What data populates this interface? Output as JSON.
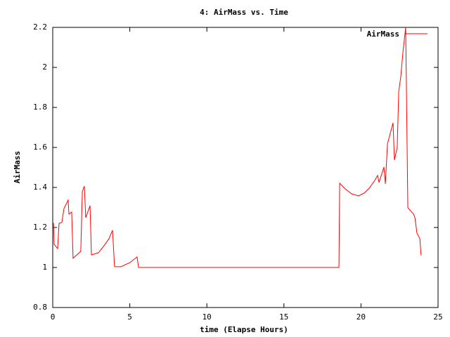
{
  "chart_data": {
    "type": "line",
    "title": "4: AirMass vs. Time",
    "x_label": "time (Elapse Hours)",
    "y_label": "AirMass",
    "x": [
      0,
      0.05,
      0.09,
      0.32,
      0.41,
      0.59,
      0.73,
      1.0,
      1.05,
      1.23,
      1.32,
      1.82,
      1.92,
      2.05,
      2.14,
      2.42,
      2.51,
      2.97,
      3.33,
      3.65,
      3.88,
      4.01,
      4.43,
      5.02,
      5.47,
      5.57,
      18.57,
      18.62,
      18.93,
      19.39,
      19.85,
      20.21,
      20.53,
      20.89,
      21.08,
      21.17,
      21.49,
      21.58,
      21.72,
      22.08,
      22.17,
      22.35,
      22.45,
      22.58,
      22.72,
      22.9,
      23.04,
      23.41,
      23.5,
      23.63,
      23.82,
      23.9
    ],
    "series": [
      {
        "name": "AirMass",
        "color": "#ff0000",
        "values": [
          1.221,
          1.221,
          1.116,
          1.095,
          1.221,
          1.225,
          1.295,
          1.337,
          1.267,
          1.277,
          1.046,
          1.081,
          1.379,
          1.407,
          1.249,
          1.309,
          1.063,
          1.074,
          1.109,
          1.144,
          1.186,
          1.004,
          1.004,
          1.025,
          1.053,
          1.0,
          1.0,
          1.421,
          1.396,
          1.368,
          1.358,
          1.372,
          1.396,
          1.435,
          1.46,
          1.425,
          1.502,
          1.418,
          1.618,
          1.723,
          1.537,
          1.6,
          1.881,
          1.951,
          2.074,
          2.2,
          1.298,
          1.267,
          1.249,
          1.172,
          1.144,
          1.06
        ]
      }
    ],
    "xlim": [
      0,
      25
    ],
    "xticks": [
      0,
      5,
      10,
      15,
      20,
      25
    ],
    "ylim": [
      0.8,
      2.2
    ],
    "yticks": [
      0.8,
      1,
      1.2,
      1.4,
      1.6,
      1.8,
      2,
      2.2
    ],
    "legend": "top-right"
  }
}
